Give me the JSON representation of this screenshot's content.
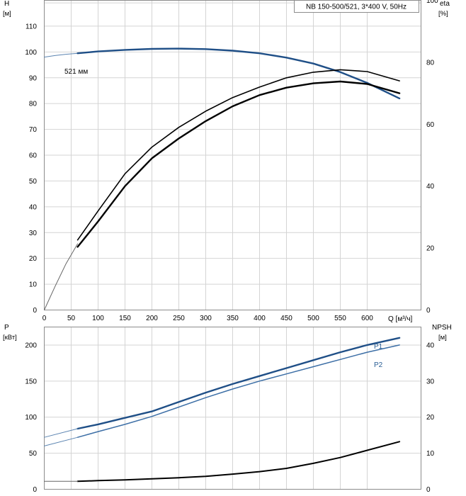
{
  "chart_data": [
    {
      "type": "line",
      "panel": "upper",
      "title": "NB 150-500/521, 3*400 V, 50Hz",
      "x_axis": {
        "label": "Q [м³/ч]",
        "range": [
          0,
          700
        ],
        "ticks": [
          0,
          50,
          100,
          150,
          200,
          250,
          300,
          350,
          400,
          450,
          500,
          550,
          600
        ]
      },
      "y_left": {
        "label": "H",
        "unit": "[м]",
        "range": [
          0,
          120
        ],
        "ticks": [
          0,
          10,
          20,
          30,
          40,
          50,
          60,
          70,
          80,
          90,
          100,
          110
        ]
      },
      "y_right": {
        "label": "eta",
        "unit": "[%]",
        "range": [
          0,
          100
        ],
        "ticks": [
          0,
          20,
          40,
          60,
          80,
          100
        ]
      },
      "grid": true,
      "annotations": [
        "521 мм"
      ],
      "series": [
        {
          "role": "head-extension",
          "axis": "left",
          "color": "#5b84b1",
          "x": [
            0,
            20,
            40,
            62
          ],
          "y": [
            98,
            98.6,
            99.1,
            99.5
          ]
        },
        {
          "role": "head",
          "axis": "left",
          "color": "#1f4f87",
          "x": [
            62,
            100,
            150,
            200,
            250,
            300,
            350,
            400,
            450,
            500,
            550,
            600,
            660
          ],
          "y": [
            99.5,
            100.2,
            100.8,
            101.2,
            101.3,
            101.1,
            100.5,
            99.5,
            97.8,
            95.5,
            92.2,
            88,
            82
          ]
        },
        {
          "role": "efficiency-extension",
          "axis": "right",
          "color": "#666666",
          "x": [
            0,
            20,
            40,
            62
          ],
          "y": [
            0,
            7.6,
            14.8,
            21.4
          ]
        },
        {
          "role": "efficiency-outer",
          "axis": "right",
          "color": "#000000",
          "x": [
            62,
            100,
            150,
            200,
            250,
            300,
            350,
            400,
            450,
            500,
            550,
            600,
            660
          ],
          "y": [
            22.6,
            32,
            44,
            52.6,
            59,
            64.2,
            68.6,
            72,
            75,
            76.8,
            77.6,
            77,
            74
          ]
        },
        {
          "role": "efficiency-inner",
          "axis": "right",
          "color": "#000000",
          "x": [
            62,
            100,
            150,
            200,
            250,
            300,
            350,
            400,
            450,
            500,
            550,
            600,
            660
          ],
          "y": [
            20.4,
            28.6,
            40,
            49,
            55.4,
            61,
            65.8,
            69.4,
            71.8,
            73.2,
            73.8,
            73,
            70
          ]
        }
      ]
    },
    {
      "type": "line",
      "panel": "lower",
      "x_axis": {
        "range": [
          0,
          700
        ],
        "ticks": [
          0,
          50,
          100,
          150,
          200,
          250,
          300,
          350,
          400,
          450,
          500,
          550,
          600
        ]
      },
      "y_left": {
        "label": "P",
        "unit": "[кВт]",
        "range": [
          0,
          225
        ],
        "ticks": [
          0,
          50,
          100,
          150,
          200
        ]
      },
      "y_right": {
        "label": "NPSH",
        "unit": "[м]",
        "range": [
          0,
          45
        ],
        "ticks": [
          0,
          10,
          20,
          30,
          40
        ]
      },
      "grid": true,
      "series": [
        {
          "name": "P1",
          "axis": "left",
          "color": "#1f4f87",
          "x": [
            62,
            100,
            150,
            200,
            250,
            300,
            350,
            400,
            450,
            500,
            550,
            600,
            660
          ],
          "y": [
            84,
            90,
            99,
            108,
            121,
            134,
            146,
            157,
            168,
            179,
            190,
            200,
            210
          ]
        },
        {
          "role": "P1-extension",
          "axis": "left",
          "color": "#5b84b1",
          "x": [
            0,
            62
          ],
          "y": [
            72,
            84
          ]
        },
        {
          "name": "P2",
          "axis": "left",
          "color": "#3d6fa6",
          "x": [
            62,
            100,
            150,
            200,
            250,
            300,
            350,
            400,
            450,
            500,
            550,
            600,
            660
          ],
          "y": [
            72,
            80,
            90,
            101,
            114,
            127,
            139,
            150,
            160,
            170,
            180,
            190,
            200
          ]
        },
        {
          "role": "P2-extension",
          "axis": "left",
          "color": "#5b84b1",
          "x": [
            0,
            62
          ],
          "y": [
            60,
            72
          ]
        },
        {
          "role": "npsh",
          "axis": "right",
          "color": "#000000",
          "x": [
            62,
            100,
            150,
            200,
            250,
            300,
            350,
            400,
            450,
            500,
            550,
            600,
            660
          ],
          "y": [
            2.2,
            2.4,
            2.6,
            2.9,
            3.2,
            3.6,
            4.2,
            4.9,
            5.8,
            7.2,
            8.8,
            10.8,
            13.2
          ]
        },
        {
          "role": "npsh-extension",
          "axis": "right",
          "color": "#666666",
          "x": [
            0,
            62
          ],
          "y": [
            2.2,
            2.2
          ]
        }
      ]
    }
  ]
}
